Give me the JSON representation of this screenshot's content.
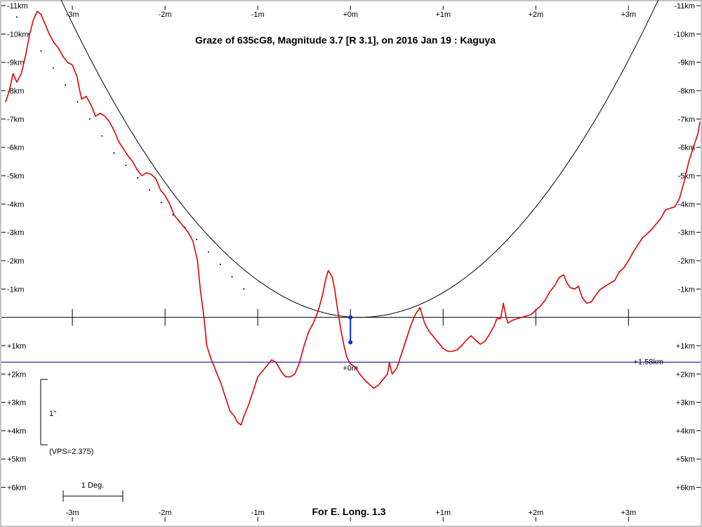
{
  "chart_data": {
    "type": "line",
    "title": "Graze of  635cG8,  Magnitude 3.7 [R 3.1],  on 2016 Jan 19  :  Kaguya",
    "footer": "For E. Long. 1.3",
    "x_ticks": [
      "-3m",
      "-2m",
      "-1m",
      "+0m",
      "+1m",
      "+2m",
      "+3m"
    ],
    "x_tick_values": [
      -3,
      -2,
      -1,
      0,
      1,
      2,
      3
    ],
    "xlim": [
      -3.72,
      3.77
    ],
    "y_ticks_neg": [
      "-11km",
      "-10km",
      "-9km",
      "-8km",
      "-7km",
      "-6km",
      "-5km",
      "-4km",
      "-3km",
      "-2km",
      "-1km"
    ],
    "y_ticks_neg_values": [
      -11,
      -10,
      -9,
      -8,
      -7,
      -6,
      -5,
      -4,
      -3,
      -2,
      -1
    ],
    "y_ticks_pos": [
      "+1km",
      "+2km",
      "+3km",
      "+4km",
      "+5km",
      "+6km"
    ],
    "y_ticks_pos_values": [
      1,
      2,
      3,
      4,
      5,
      6
    ],
    "ylim": [
      -11.2,
      7.4
    ],
    "baseline_label": "+1.58km",
    "baseline_value": 1.58,
    "center_label": "+0m",
    "scale_bar_label": "1\"",
    "vps_label": "(VPS=2.375)",
    "degree_label": "1 Deg.",
    "colors": {
      "profile": "#e00000",
      "baseline": "#000080",
      "marker": "#0033cc",
      "axis": "#000000"
    },
    "marker": {
      "x": 0,
      "y_top": 0,
      "y_bottom": 0.88
    },
    "parabola": {
      "vertex_x": 0.1,
      "k": 1.08
    },
    "dotted_line": [
      [
        -3.6,
        -10.6
      ],
      [
        -2.55,
        -5.8
      ],
      [
        -1.15,
        -1.0
      ]
    ],
    "series": [
      {
        "points": [
          [
            -3.72,
            -7.6
          ],
          [
            -3.68,
            -8.0
          ],
          [
            -3.64,
            -8.6
          ],
          [
            -3.6,
            -8.3
          ],
          [
            -3.55,
            -8.6
          ],
          [
            -3.5,
            -9.3
          ],
          [
            -3.46,
            -10.0
          ],
          [
            -3.42,
            -10.5
          ],
          [
            -3.38,
            -10.8
          ],
          [
            -3.34,
            -10.7
          ],
          [
            -3.3,
            -10.4
          ],
          [
            -3.25,
            -10.0
          ],
          [
            -3.2,
            -9.7
          ],
          [
            -3.15,
            -9.5
          ],
          [
            -3.1,
            -9.2
          ],
          [
            -3.05,
            -9.0
          ],
          [
            -3.0,
            -8.9
          ],
          [
            -2.95,
            -8.5
          ],
          [
            -2.92,
            -8.0
          ],
          [
            -2.9,
            -7.7
          ],
          [
            -2.85,
            -7.8
          ],
          [
            -2.8,
            -7.5
          ],
          [
            -2.75,
            -7.1
          ],
          [
            -2.7,
            -7.2
          ],
          [
            -2.65,
            -7.1
          ],
          [
            -2.6,
            -6.9
          ],
          [
            -2.55,
            -6.6
          ],
          [
            -2.5,
            -6.2
          ],
          [
            -2.45,
            -5.95
          ],
          [
            -2.4,
            -5.7
          ],
          [
            -2.35,
            -5.5
          ],
          [
            -2.3,
            -5.2
          ],
          [
            -2.25,
            -5.0
          ],
          [
            -2.2,
            -5.1
          ],
          [
            -2.15,
            -5.05
          ],
          [
            -2.1,
            -4.9
          ],
          [
            -2.05,
            -4.5
          ],
          [
            -2.0,
            -4.3
          ],
          [
            -1.95,
            -4.0
          ],
          [
            -1.9,
            -3.6
          ],
          [
            -1.85,
            -3.4
          ],
          [
            -1.8,
            -3.2
          ],
          [
            -1.75,
            -3.0
          ],
          [
            -1.7,
            -2.7
          ],
          [
            -1.65,
            -2.0
          ],
          [
            -1.62,
            -1.0
          ],
          [
            -1.58,
            0.0
          ],
          [
            -1.55,
            1.0
          ],
          [
            -1.5,
            1.5
          ],
          [
            -1.45,
            1.9
          ],
          [
            -1.4,
            2.3
          ],
          [
            -1.35,
            2.8
          ],
          [
            -1.3,
            3.3
          ],
          [
            -1.25,
            3.5
          ],
          [
            -1.22,
            3.7
          ],
          [
            -1.18,
            3.8
          ],
          [
            -1.15,
            3.5
          ],
          [
            -1.1,
            3.1
          ],
          [
            -1.05,
            2.6
          ],
          [
            -1.0,
            2.1
          ],
          [
            -0.95,
            1.9
          ],
          [
            -0.9,
            1.7
          ],
          [
            -0.85,
            1.5
          ],
          [
            -0.8,
            1.6
          ],
          [
            -0.75,
            1.9
          ],
          [
            -0.7,
            2.1
          ],
          [
            -0.65,
            2.1
          ],
          [
            -0.6,
            2.0
          ],
          [
            -0.55,
            1.6
          ],
          [
            -0.5,
            1.0
          ],
          [
            -0.45,
            0.5
          ],
          [
            -0.4,
            0.2
          ],
          [
            -0.35,
            -0.2
          ],
          [
            -0.3,
            -0.8
          ],
          [
            -0.27,
            -1.3
          ],
          [
            -0.24,
            -1.65
          ],
          [
            -0.2,
            -1.45
          ],
          [
            -0.17,
            -1.0
          ],
          [
            -0.14,
            -0.3
          ],
          [
            -0.1,
            0.5
          ],
          [
            -0.07,
            1.0
          ],
          [
            -0.04,
            1.4
          ],
          [
            0.0,
            1.65
          ],
          [
            0.05,
            1.75
          ],
          [
            0.1,
            2.0
          ],
          [
            0.15,
            2.2
          ],
          [
            0.2,
            2.35
          ],
          [
            0.25,
            2.5
          ],
          [
            0.3,
            2.4
          ],
          [
            0.35,
            2.2
          ],
          [
            0.4,
            2.0
          ],
          [
            0.42,
            1.6
          ],
          [
            0.45,
            2.0
          ],
          [
            0.5,
            1.8
          ],
          [
            0.55,
            1.3
          ],
          [
            0.6,
            0.8
          ],
          [
            0.65,
            0.3
          ],
          [
            0.7,
            -0.1
          ],
          [
            0.75,
            -0.35
          ],
          [
            0.8,
            0.2
          ],
          [
            0.85,
            0.5
          ],
          [
            0.9,
            0.7
          ],
          [
            0.95,
            0.9
          ],
          [
            1.0,
            1.1
          ],
          [
            1.05,
            1.2
          ],
          [
            1.1,
            1.2
          ],
          [
            1.15,
            1.15
          ],
          [
            1.2,
            1.0
          ],
          [
            1.25,
            0.8
          ],
          [
            1.3,
            0.65
          ],
          [
            1.35,
            0.8
          ],
          [
            1.4,
            0.95
          ],
          [
            1.45,
            0.85
          ],
          [
            1.5,
            0.6
          ],
          [
            1.55,
            0.3
          ],
          [
            1.58,
            0.05
          ],
          [
            1.62,
            0.05
          ],
          [
            1.65,
            -0.5
          ],
          [
            1.68,
            0.0
          ],
          [
            1.7,
            0.2
          ],
          [
            1.75,
            0.1
          ],
          [
            1.8,
            0.05
          ],
          [
            1.85,
            0.0
          ],
          [
            1.9,
            -0.05
          ],
          [
            1.95,
            -0.1
          ],
          [
            2.0,
            -0.25
          ],
          [
            2.05,
            -0.4
          ],
          [
            2.1,
            -0.6
          ],
          [
            2.15,
            -0.9
          ],
          [
            2.2,
            -1.1
          ],
          [
            2.25,
            -1.4
          ],
          [
            2.3,
            -1.5
          ],
          [
            2.33,
            -1.25
          ],
          [
            2.37,
            -1.05
          ],
          [
            2.42,
            -1.0
          ],
          [
            2.46,
            -1.1
          ],
          [
            2.5,
            -0.7
          ],
          [
            2.55,
            -0.5
          ],
          [
            2.6,
            -0.55
          ],
          [
            2.65,
            -0.8
          ],
          [
            2.7,
            -1.0
          ],
          [
            2.75,
            -1.1
          ],
          [
            2.8,
            -1.2
          ],
          [
            2.85,
            -1.3
          ],
          [
            2.9,
            -1.6
          ],
          [
            2.95,
            -1.75
          ],
          [
            3.0,
            -2.0
          ],
          [
            3.05,
            -2.3
          ],
          [
            3.1,
            -2.55
          ],
          [
            3.15,
            -2.8
          ],
          [
            3.2,
            -2.95
          ],
          [
            3.25,
            -3.1
          ],
          [
            3.3,
            -3.3
          ],
          [
            3.35,
            -3.5
          ],
          [
            3.4,
            -3.8
          ],
          [
            3.45,
            -3.85
          ],
          [
            3.5,
            -3.9
          ],
          [
            3.55,
            -4.2
          ],
          [
            3.6,
            -4.8
          ],
          [
            3.65,
            -5.5
          ],
          [
            3.7,
            -6.0
          ],
          [
            3.75,
            -6.5
          ],
          [
            3.77,
            -6.9
          ]
        ]
      }
    ]
  }
}
